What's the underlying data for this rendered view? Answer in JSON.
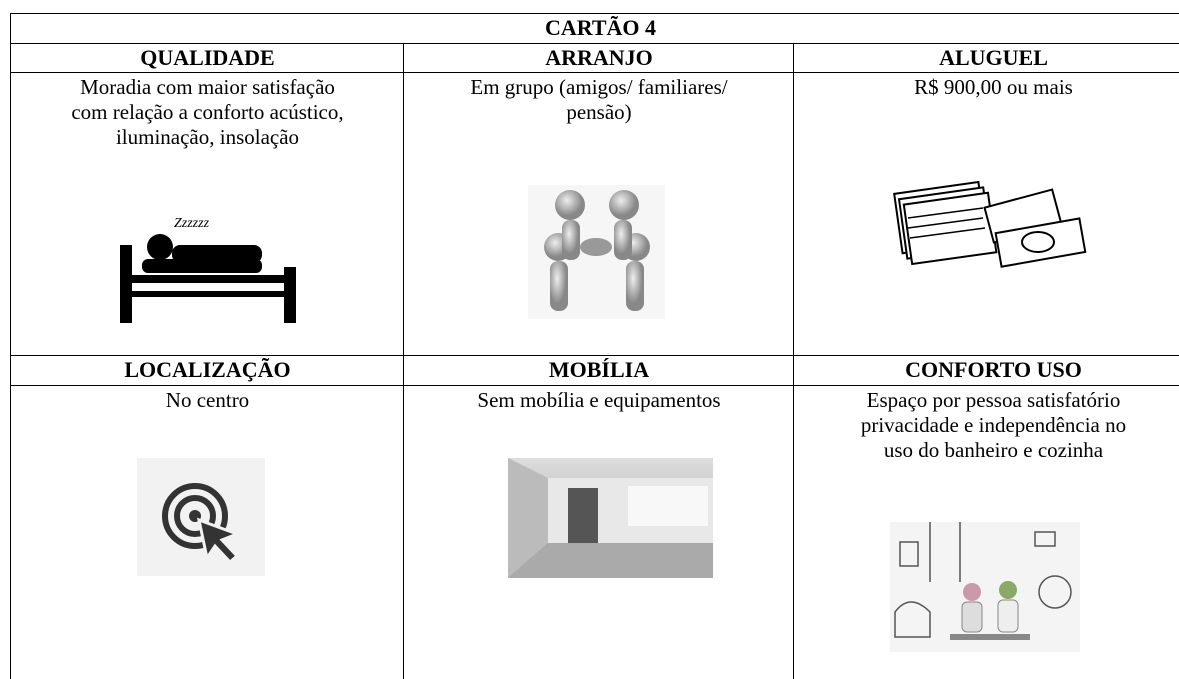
{
  "title": "CARTÃO 4",
  "rows": [
    {
      "cells": [
        {
          "heading": "QUALIDADE",
          "lines": [
            "Moradia com maior satisfação",
            "com relação a conforto acústico,",
            "iluminação, insolação"
          ]
        },
        {
          "heading": "ARRANJO",
          "lines": [
            "Em grupo (amigos/ familiares/",
            "pensão)"
          ]
        },
        {
          "heading": "ALUGUEL",
          "lines": [
            "R$ 900,00 ou mais"
          ]
        }
      ]
    },
    {
      "cells": [
        {
          "heading": "LOCALIZAÇÃO",
          "lines": [
            "No centro"
          ]
        },
        {
          "heading": "MOBÍLIA",
          "lines": [
            "Sem mobília e equipamentos"
          ]
        },
        {
          "heading": "CONFORTO USO",
          "lines": [
            "Espaço por pessoa satisfatório",
            "privacidade e independência no",
            "uso do banheiro e cozinha"
          ]
        }
      ]
    }
  ],
  "bed_caption": "Zzzzzz"
}
